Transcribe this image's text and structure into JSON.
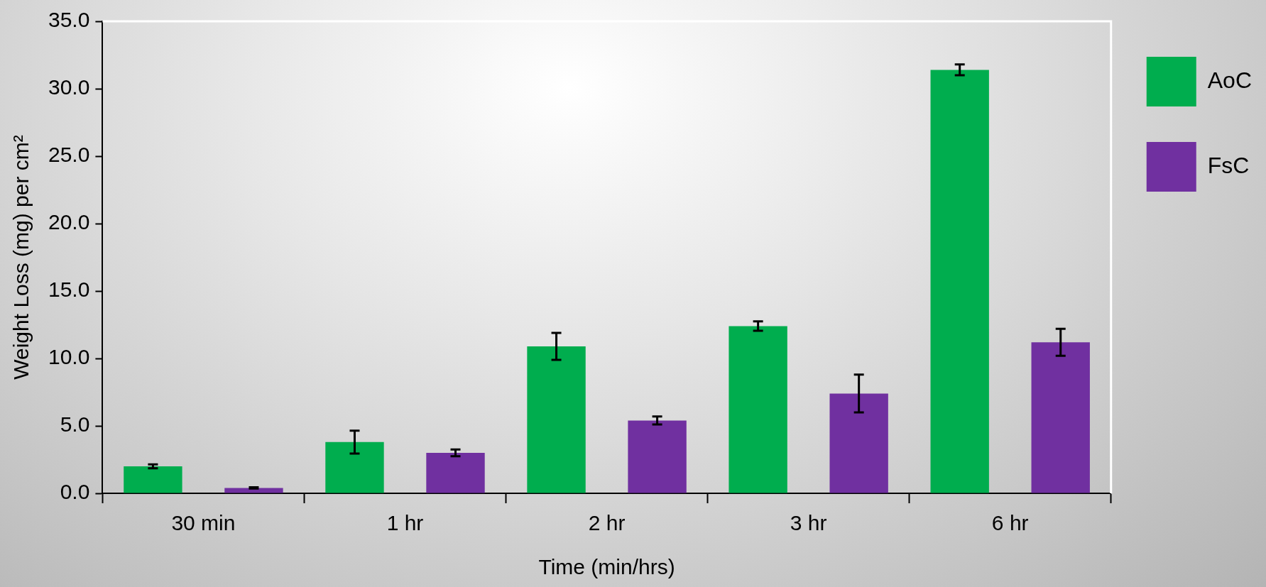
{
  "chart_data": {
    "type": "bar",
    "xlabel": "Time (min/hrs)",
    "ylabel": "Weight Loss (mg) per cm²",
    "categories": [
      "30 min",
      "1 hr",
      "2 hr",
      "3 hr",
      "6 hr"
    ],
    "series": [
      {
        "name": "AoC",
        "color": "#00ad4e",
        "values": [
          2.0,
          3.8,
          10.9,
          12.4,
          31.4
        ],
        "errors": [
          0.15,
          0.85,
          1.0,
          0.35,
          0.4
        ]
      },
      {
        "name": "FsC",
        "color": "#7030a0",
        "values": [
          0.4,
          3.0,
          5.4,
          7.4,
          11.2
        ],
        "errors": [
          0.05,
          0.25,
          0.3,
          1.4,
          1.0
        ]
      }
    ],
    "ylim": [
      0,
      35
    ],
    "yticks": [
      {
        "value": 0,
        "label": "0.0"
      },
      {
        "value": 5,
        "label": "5.0"
      },
      {
        "value": 10,
        "label": "10.0"
      },
      {
        "value": 15,
        "label": "15.0"
      },
      {
        "value": 20,
        "label": "20.0"
      },
      {
        "value": 25,
        "label": "25.0"
      },
      {
        "value": 30,
        "label": "30.0"
      },
      {
        "value": 35,
        "label": "35.0"
      }
    ],
    "grid": false,
    "legend": "right"
  }
}
